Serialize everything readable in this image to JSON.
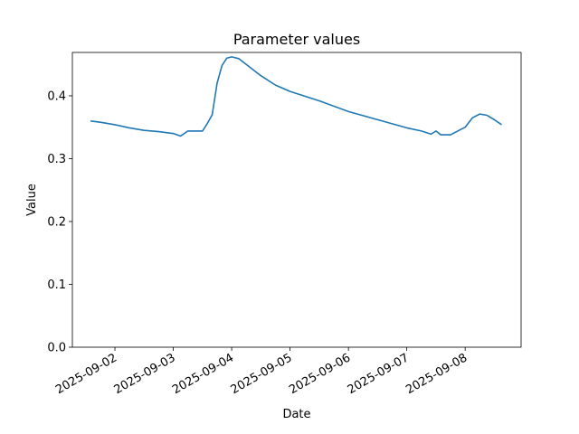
{
  "chart_data": {
    "type": "line",
    "title": "Parameter values",
    "x_label": "Date",
    "y_label": "Value",
    "x": [
      "2025-09-01T14:00",
      "2025-09-01T18:00",
      "2025-09-02T00:00",
      "2025-09-02T06:00",
      "2025-09-02T12:00",
      "2025-09-02T18:00",
      "2025-09-03T00:00",
      "2025-09-03T03:00",
      "2025-09-03T06:00",
      "2025-09-03T12:00",
      "2025-09-03T14:00",
      "2025-09-03T16:00",
      "2025-09-03T18:00",
      "2025-09-03T20:00",
      "2025-09-03T22:00",
      "2025-09-04T00:00",
      "2025-09-04T03:00",
      "2025-09-04T06:00",
      "2025-09-04T12:00",
      "2025-09-04T18:00",
      "2025-09-05T00:00",
      "2025-09-05T12:00",
      "2025-09-06T00:00",
      "2025-09-06T12:00",
      "2025-09-07T00:00",
      "2025-09-07T06:00",
      "2025-09-07T10:00",
      "2025-09-07T12:00",
      "2025-09-07T14:00",
      "2025-09-07T18:00",
      "2025-09-08T00:00",
      "2025-09-08T03:00",
      "2025-09-08T06:00",
      "2025-09-08T09:00",
      "2025-09-08T12:00",
      "2025-09-08T15:00"
    ],
    "series": [
      {
        "name": "Value",
        "color": "#1f77b4",
        "values": [
          0.36,
          0.358,
          0.354,
          0.349,
          0.345,
          0.343,
          0.34,
          0.336,
          0.344,
          0.344,
          0.356,
          0.37,
          0.42,
          0.448,
          0.46,
          0.462,
          0.459,
          0.45,
          0.432,
          0.417,
          0.407,
          0.392,
          0.375,
          0.362,
          0.349,
          0.344,
          0.339,
          0.344,
          0.338,
          0.338,
          0.35,
          0.365,
          0.371,
          0.369,
          0.362,
          0.354
        ]
      }
    ],
    "xlim": [
      "2025-09-01T06:30",
      "2025-09-08T23:00"
    ],
    "xticks": [
      "2025-09-02",
      "2025-09-03",
      "2025-09-04",
      "2025-09-05",
      "2025-09-06",
      "2025-09-07",
      "2025-09-08"
    ],
    "ylim": [
      0,
      0.469
    ],
    "yticks": [
      {
        "value": 0,
        "label": "0.0"
      },
      {
        "value": 0.1,
        "label": "0.1"
      },
      {
        "value": 0.2,
        "label": "0.2"
      },
      {
        "value": 0.3,
        "label": "0.3"
      },
      {
        "value": 0.4,
        "label": "0.4"
      }
    ],
    "grid": false
  }
}
